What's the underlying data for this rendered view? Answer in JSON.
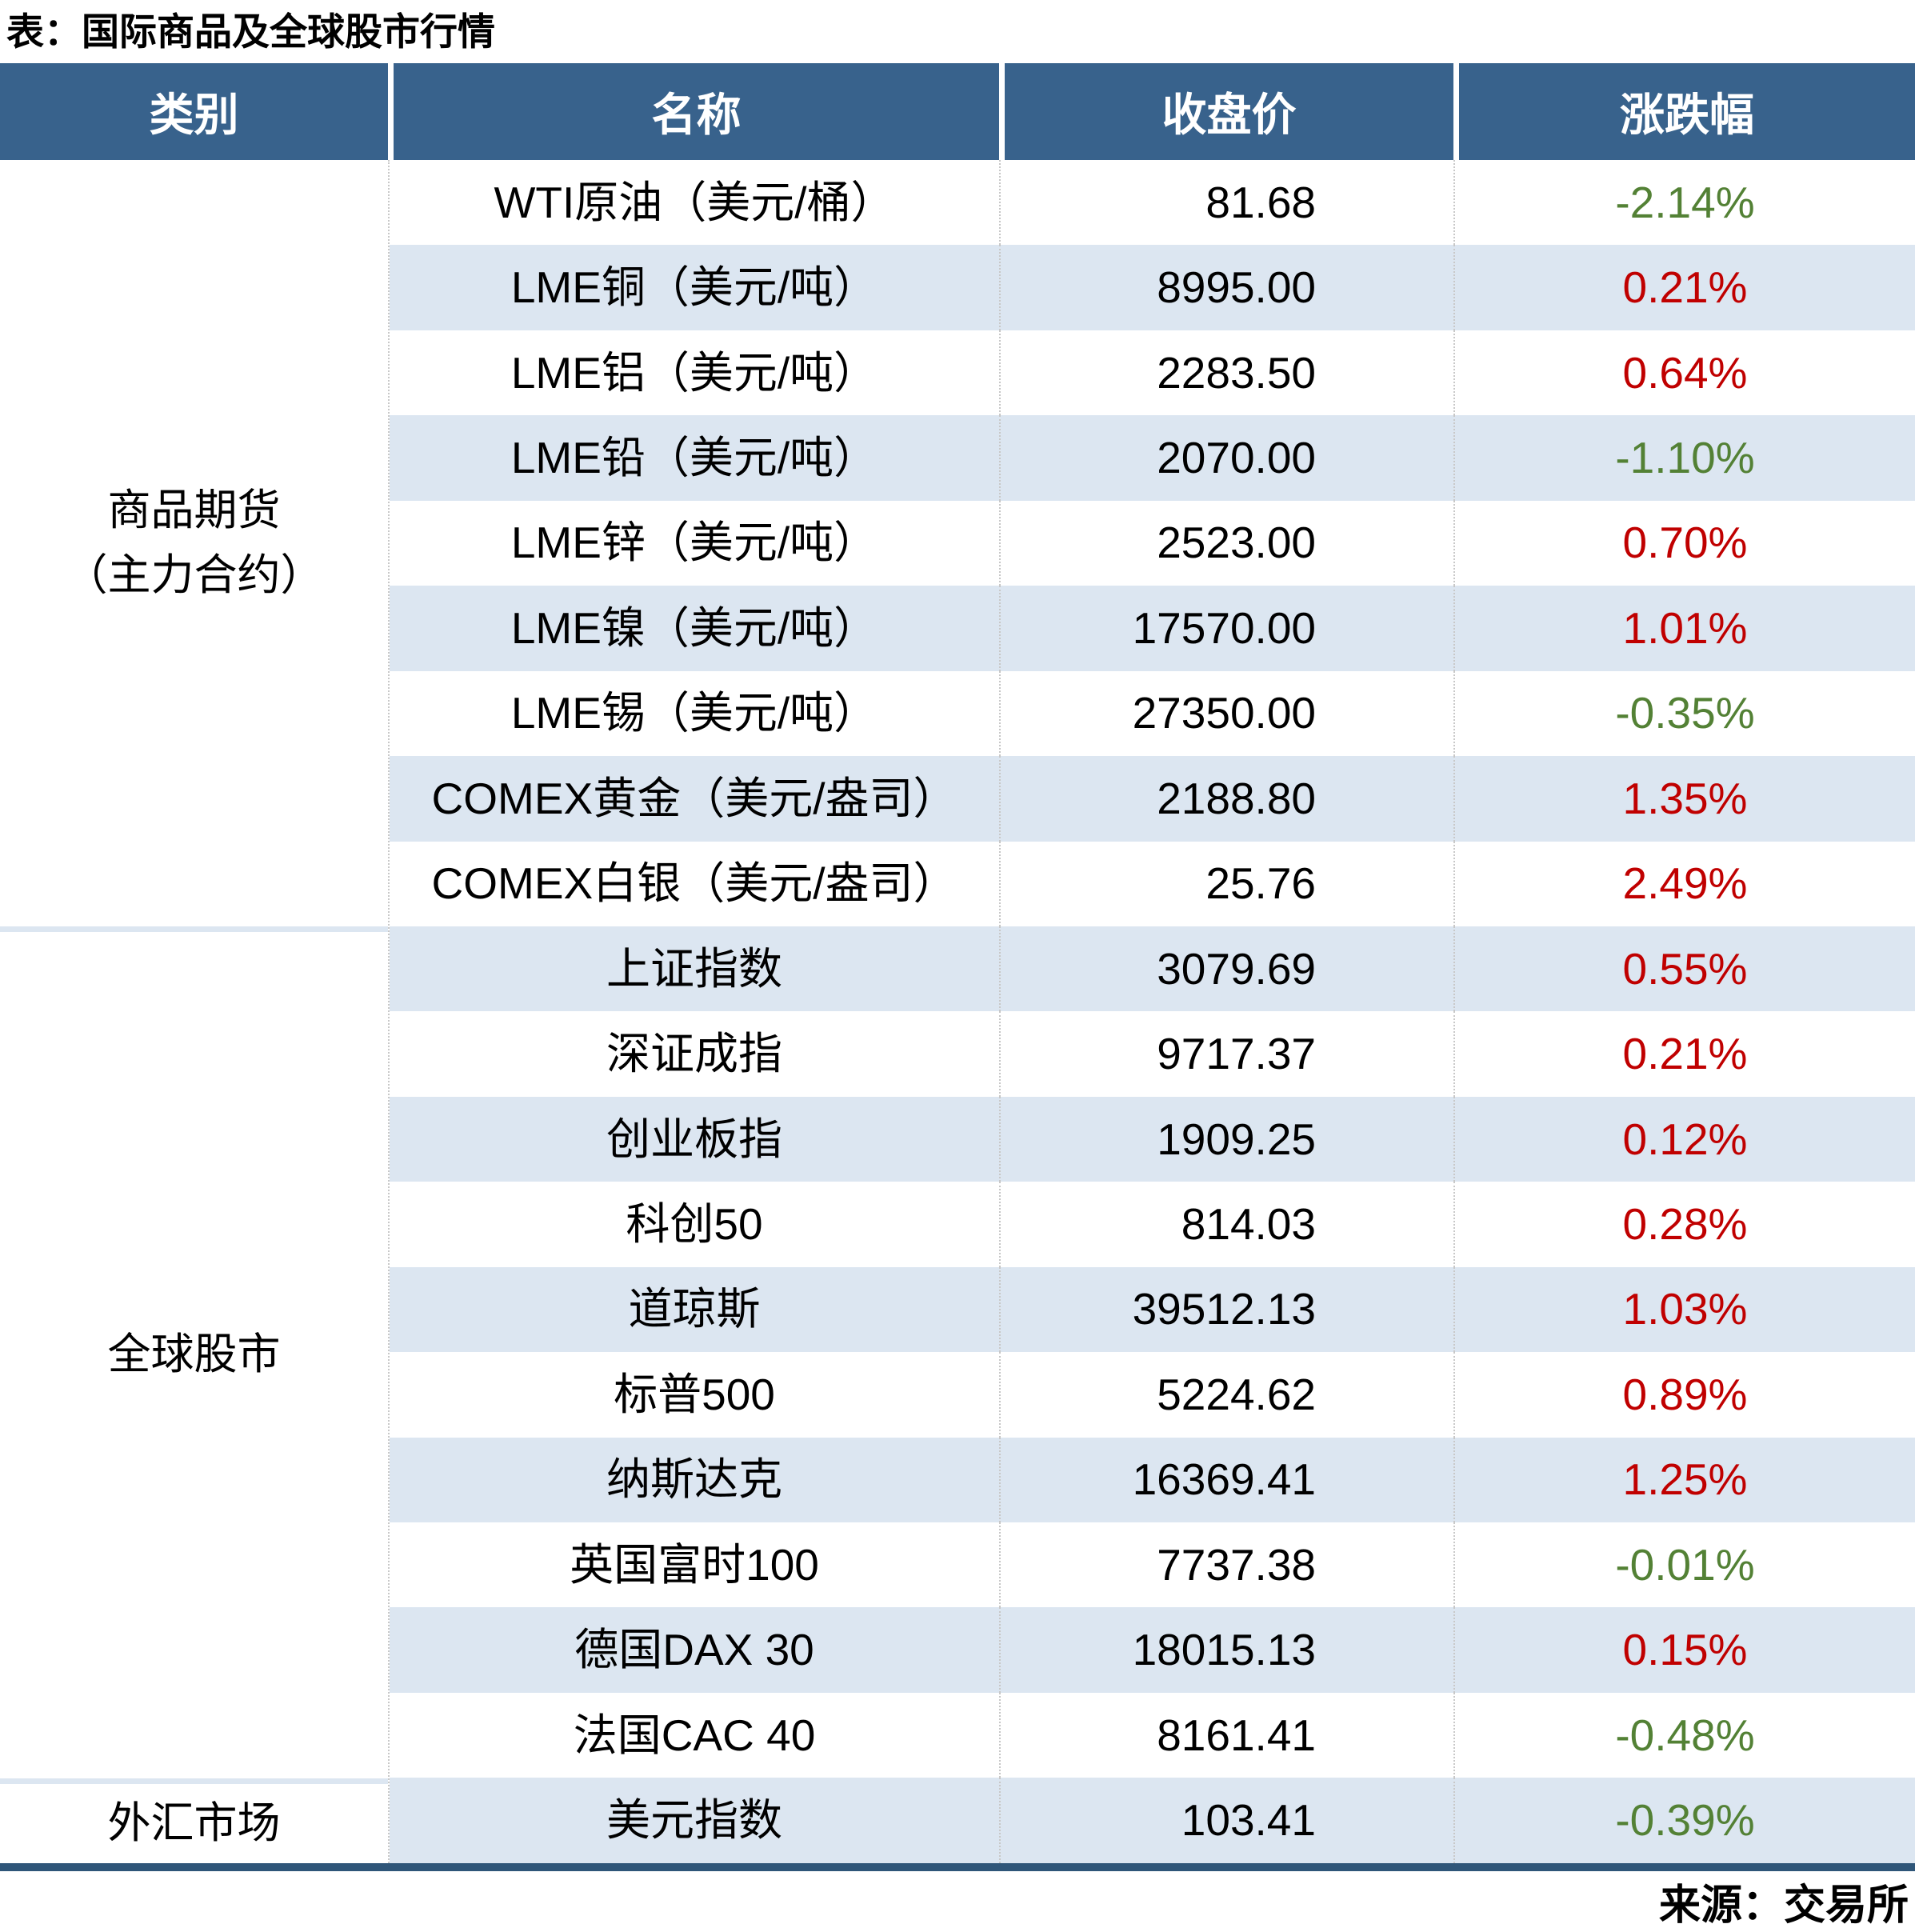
{
  "title": "表：国际商品及全球股市行情",
  "source_note": "来源：交易所",
  "colors": {
    "header-bg": "#38628c",
    "bar": "#2f5679",
    "shade": "#dce6f1",
    "up": "#c00000",
    "down": "#538135"
  },
  "table": {
    "columns": [
      "类别",
      "名称",
      "收盘价",
      "涨跌幅"
    ],
    "groups": [
      {
        "label": "商品期货\n（主力合约）",
        "row_count": 9
      },
      {
        "label": "全球股市",
        "row_count": 10
      },
      {
        "label": "外汇市场",
        "row_count": 1
      }
    ],
    "rows": [
      {
        "name": "WTI原油（美元/桶）",
        "close": "81.68",
        "change": "-2.14%",
        "dir": "down"
      },
      {
        "name": "LME铜（美元/吨）",
        "close": "8995.00",
        "change": "0.21%",
        "dir": "up"
      },
      {
        "name": "LME铝（美元/吨）",
        "close": "2283.50",
        "change": "0.64%",
        "dir": "up"
      },
      {
        "name": "LME铅（美元/吨）",
        "close": "2070.00",
        "change": "-1.10%",
        "dir": "down"
      },
      {
        "name": "LME锌（美元/吨）",
        "close": "2523.00",
        "change": "0.70%",
        "dir": "up"
      },
      {
        "name": "LME镍（美元/吨）",
        "close": "17570.00",
        "change": "1.01%",
        "dir": "up"
      },
      {
        "name": "LME锡（美元/吨）",
        "close": "27350.00",
        "change": "-0.35%",
        "dir": "down"
      },
      {
        "name": "COMEX黄金（美元/盎司）",
        "close": "2188.80",
        "change": "1.35%",
        "dir": "up"
      },
      {
        "name": "COMEX白银（美元/盎司）",
        "close": "25.76",
        "change": "2.49%",
        "dir": "up"
      },
      {
        "name": "上证指数",
        "close": "3079.69",
        "change": "0.55%",
        "dir": "up"
      },
      {
        "name": "深证成指",
        "close": "9717.37",
        "change": "0.21%",
        "dir": "up"
      },
      {
        "name": "创业板指",
        "close": "1909.25",
        "change": "0.12%",
        "dir": "up"
      },
      {
        "name": "科创50",
        "close": "814.03",
        "change": "0.28%",
        "dir": "up"
      },
      {
        "name": "道琼斯",
        "close": "39512.13",
        "change": "1.03%",
        "dir": "up"
      },
      {
        "name": "标普500",
        "close": "5224.62",
        "change": "0.89%",
        "dir": "up"
      },
      {
        "name": "纳斯达克",
        "close": "16369.41",
        "change": "1.25%",
        "dir": "up"
      },
      {
        "name": "英国富时100",
        "close": "7737.38",
        "change": "-0.01%",
        "dir": "down"
      },
      {
        "name": "德国DAX 30",
        "close": "18015.13",
        "change": "0.15%",
        "dir": "up"
      },
      {
        "name": "法国CAC 40",
        "close": "8161.41",
        "change": "-0.48%",
        "dir": "down"
      },
      {
        "name": "美元指数",
        "close": "103.41",
        "change": "-0.39%",
        "dir": "down"
      }
    ]
  }
}
